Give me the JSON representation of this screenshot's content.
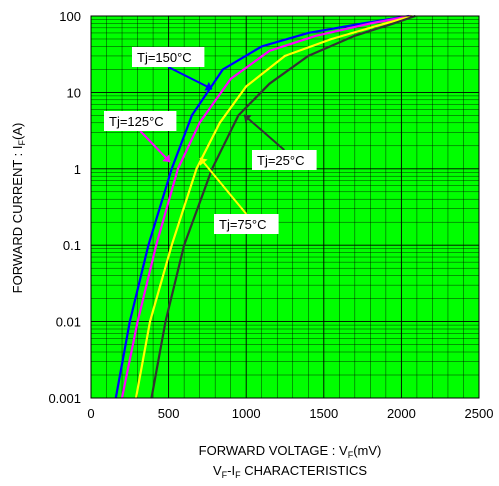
{
  "chart_data": {
    "type": "line",
    "title": "",
    "caption": {
      "main": "V",
      "sub1": "F",
      "mid": "-I",
      "sub2": "F",
      "tail": " CHARACTERISTICS"
    },
    "xlabel": {
      "main": "FORWARD VOLTAGE : V",
      "sub": "F",
      "tail": "(mV)"
    },
    "ylabel": {
      "main": "FORWARD CURRENT : I",
      "sub": "F",
      "tail": "(A)"
    },
    "xlim": [
      0,
      2500
    ],
    "ylim": [
      0.001,
      100
    ],
    "yscale": "log",
    "grid": true,
    "background_color": "#00ff00",
    "grid_color": "#000000",
    "xticks": [
      "0",
      "500",
      "1000",
      "1500",
      "2000",
      "2500"
    ],
    "yticks": [
      "0.001",
      "0.01",
      "0.1",
      "1",
      "10",
      "100"
    ],
    "series": [
      {
        "name": "Tj=150°C",
        "color": "#0000ff",
        "x": [
          160,
          250,
          370,
          520,
          650,
          850,
          1100,
          1400,
          1750,
          2050
        ],
        "y": [
          0.001,
          0.01,
          0.1,
          1,
          5,
          20,
          40,
          60,
          80,
          100
        ]
      },
      {
        "name": "Tj=125°C",
        "color": "#ff00ff",
        "x": [
          200,
          300,
          420,
          560,
          700,
          900,
          1150,
          1450,
          1800,
          2060
        ],
        "y": [
          0.001,
          0.01,
          0.1,
          1,
          4,
          15,
          35,
          55,
          80,
          100
        ]
      },
      {
        "name": "Tj=75°C",
        "color": "#ffff00",
        "x": [
          290,
          380,
          520,
          680,
          830,
          1000,
          1250,
          1550,
          1850,
          2070
        ],
        "y": [
          0.001,
          0.01,
          0.1,
          1,
          4,
          12,
          30,
          50,
          75,
          100
        ]
      },
      {
        "name": "Tj=25°C",
        "color": "#333333",
        "x": [
          390,
          480,
          600,
          780,
          950,
          1150,
          1400,
          1700,
          1950,
          2090
        ],
        "y": [
          0.001,
          0.01,
          0.1,
          1,
          5,
          13,
          30,
          55,
          80,
          100
        ]
      }
    ]
  }
}
